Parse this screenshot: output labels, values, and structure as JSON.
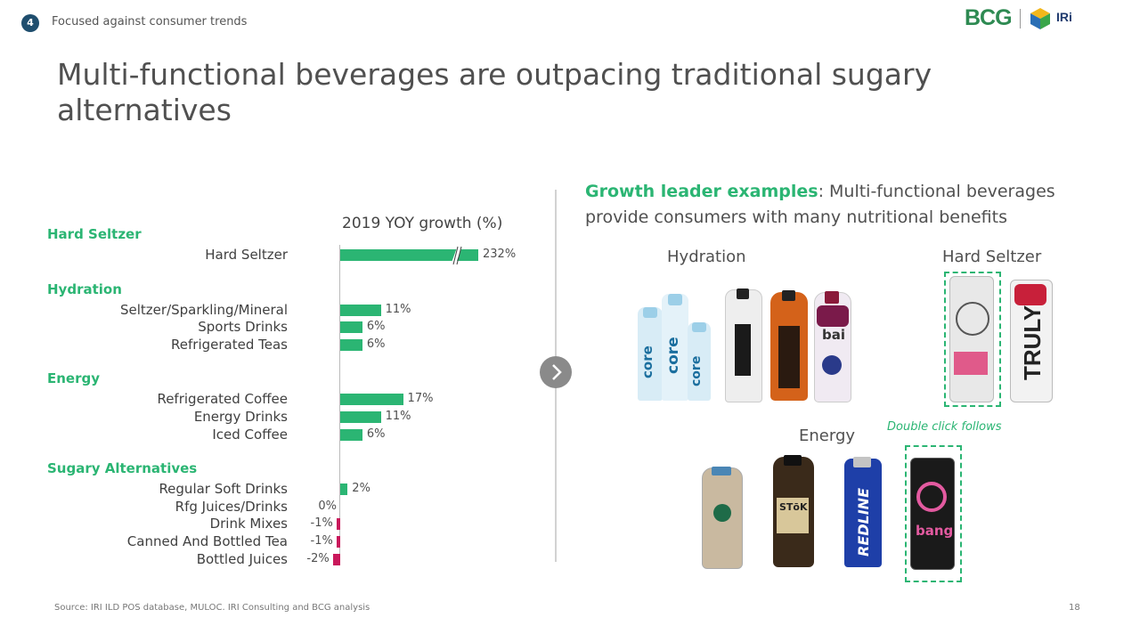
{
  "header": {
    "section_number": "4",
    "section_label": "Focused against consumer trends",
    "logo_primary": "BCG",
    "logo_secondary": "IRi"
  },
  "title": "Multi-functional beverages are outpacing traditional sugary alternatives",
  "right_panel": {
    "highlight": "Growth leader examples",
    "rest": ": Multi-functional beverages provide consumers with many nutritional benefits",
    "labels": {
      "hydration": "Hydration",
      "hard_seltzer": "Hard Seltzer",
      "energy": "Energy"
    },
    "note": "Double click follows",
    "product_texts": {
      "core": "core",
      "bai": "bai",
      "stok": "STōK",
      "redline": "REDLINE",
      "truly": "TRULY",
      "bang": "bang"
    }
  },
  "footer": {
    "source": "Source: IRI ILD POS database, MULOC. IRI Consulting and BCG analysis",
    "page": "18"
  },
  "colors": {
    "positive": "#2bb573",
    "negative": "#c9185b",
    "title": "#505050",
    "badge": "#1f4e6e"
  },
  "chart_data": {
    "type": "bar",
    "orientation": "horizontal",
    "title": "2019 YOY growth (%)",
    "axis_break": true,
    "groups": [
      {
        "name": "Hard Seltzer",
        "categories": [
          "Hard Seltzer"
        ],
        "values": [
          232
        ],
        "labels": [
          "232%"
        ]
      },
      {
        "name": "Hydration",
        "categories": [
          "Seltzer/Sparkling/Mineral",
          "Sports Drinks",
          "Refrigerated Teas"
        ],
        "values": [
          11,
          6,
          6
        ],
        "labels": [
          "11%",
          "6%",
          "6%"
        ]
      },
      {
        "name": "Energy",
        "categories": [
          "Refrigerated Coffee",
          "Energy Drinks",
          "Iced Coffee"
        ],
        "values": [
          17,
          11,
          6
        ],
        "labels": [
          "17%",
          "11%",
          "6%"
        ]
      },
      {
        "name": "Sugary Alternatives",
        "categories": [
          "Regular Soft Drinks",
          "Rfg Juices/Drinks",
          "Drink Mixes",
          "Canned And Bottled Tea",
          "Bottled Juices"
        ],
        "values": [
          2,
          0,
          -1,
          -1,
          -2
        ],
        "labels": [
          "2%",
          "0%",
          "-1%",
          "-1%",
          "-2%"
        ]
      }
    ]
  }
}
